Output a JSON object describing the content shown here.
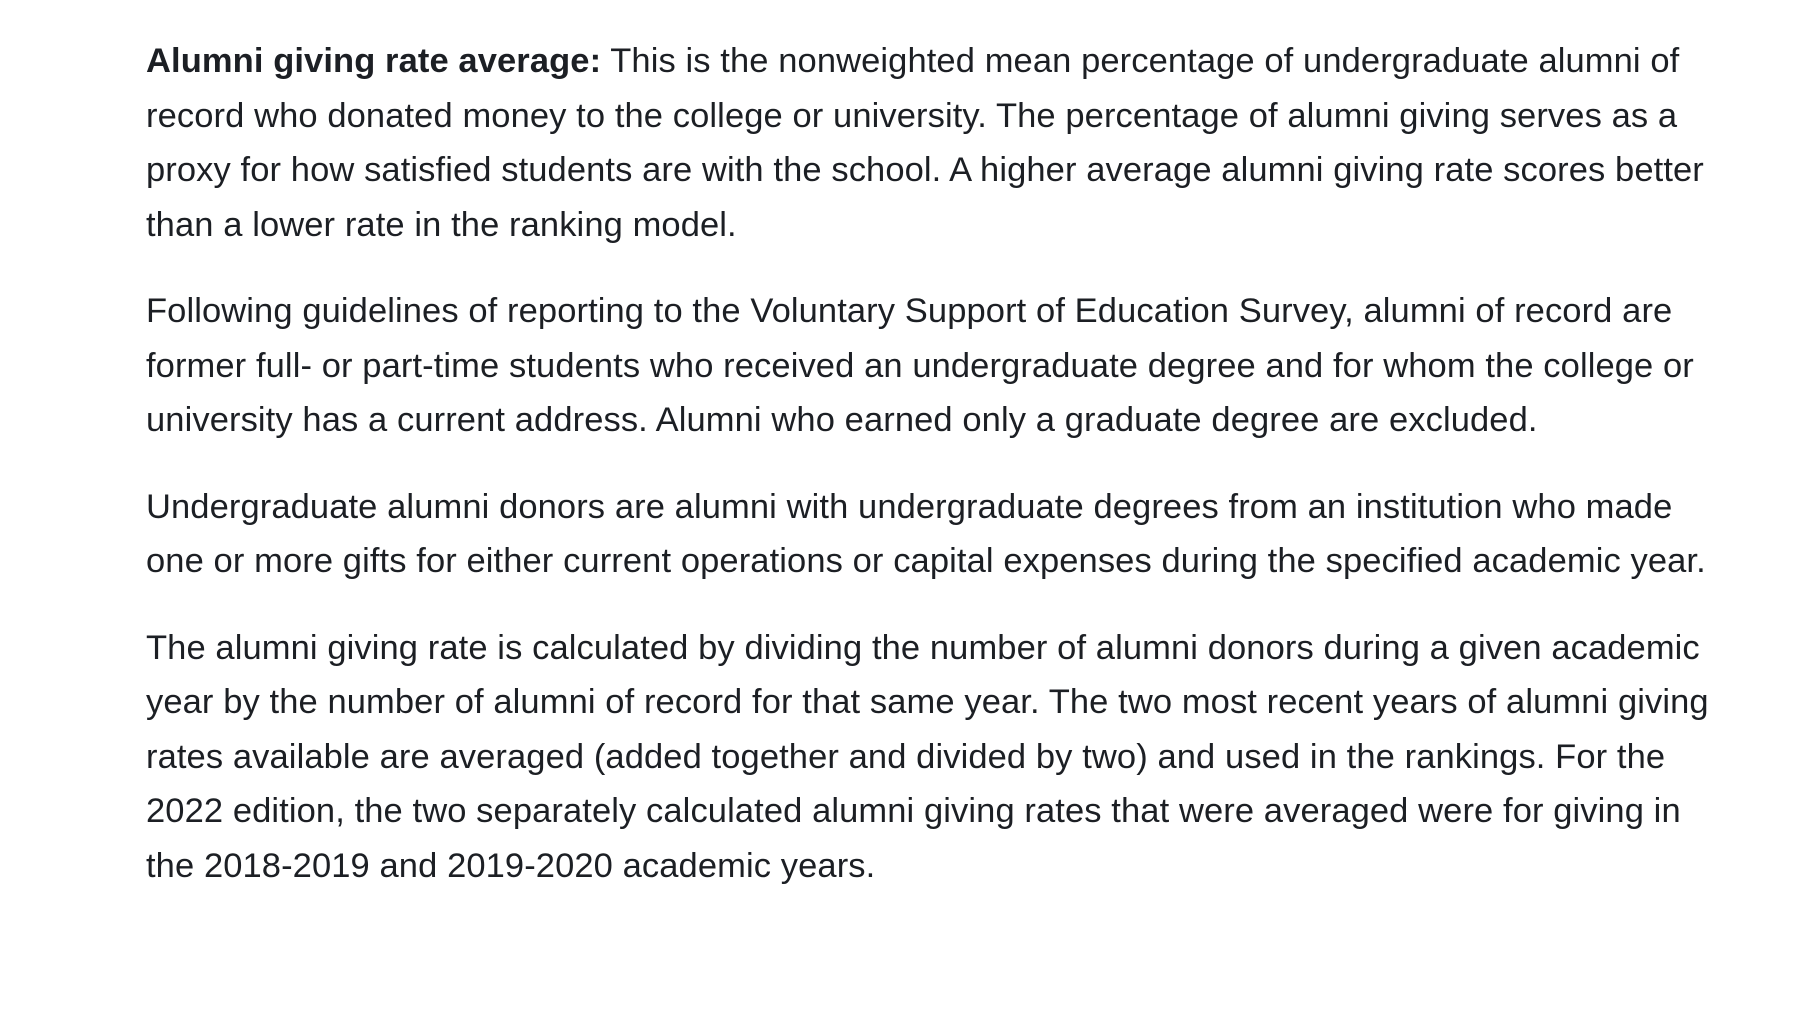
{
  "article": {
    "paragraphs": [
      {
        "term": "Alumni giving rate average:",
        "text": " This is the nonweighted mean percentage of undergraduate alumni of record who donated money to the college or university. The percentage of alumni giving serves as a proxy for how satisfied students are with the school. A higher average alumni giving rate scores better than a lower rate in the ranking model."
      },
      {
        "text": "Following guidelines of reporting to the Voluntary Support of Education Survey, alumni of record are former full- or part-time students who received an undergraduate degree and for whom the college or university has a current address. Alumni who earned only a graduate degree are excluded."
      },
      {
        "text": "Undergraduate alumni donors are alumni with undergraduate degrees from an institution who made one or more gifts for either current operations or capital expenses during the specified academic year."
      },
      {
        "text": "The alumni giving rate is calculated by dividing the number of alumni donors during a given academic year by the number of alumni of record for that same year. The two most recent years of alumni giving rates available are averaged (added together and divided by two) and used in the rankings. For the 2022 edition, the two separately calculated alumni giving rates that were averaged were for giving in the 2018-2019 and 2019-2020 academic years."
      }
    ]
  }
}
